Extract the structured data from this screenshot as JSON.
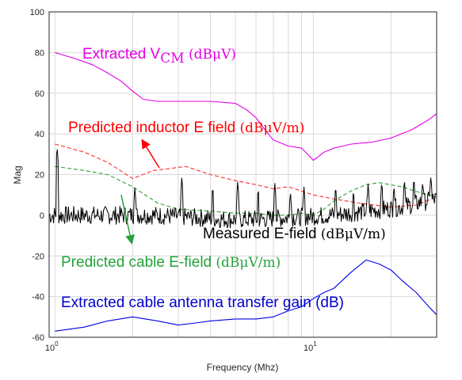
{
  "chart_data": {
    "type": "line",
    "title": "",
    "xlabel": "Frequency (Mhz)",
    "ylabel": "Mag",
    "xscale": "log",
    "xlim": [
      0.95,
      30
    ],
    "ylim": [
      -60,
      100
    ],
    "grid": true,
    "legend": "none",
    "yticks": [
      -60,
      -40,
      -20,
      0,
      20,
      40,
      60,
      80,
      100
    ],
    "xticks": [
      {
        "value": 1,
        "base": "10",
        "exp": "0"
      },
      {
        "value": 10,
        "base": "10",
        "exp": "1"
      }
    ],
    "series": [
      {
        "key": "vcm",
        "color": "#e600e6",
        "style": "solid",
        "x": [
          1.0,
          1.2,
          1.4,
          1.6,
          1.8,
          2.0,
          2.2,
          2.5,
          3.0,
          3.5,
          4.0,
          5.0,
          5.5,
          6.0,
          6.5,
          7.0,
          8.0,
          9.0,
          9.5,
          10.0,
          10.5,
          11.0,
          12.0,
          14.0,
          17.0,
          20.0,
          24.0,
          28.0,
          30.0
        ],
        "y": [
          80,
          77,
          74,
          70,
          66,
          61,
          57,
          56,
          56,
          56,
          56,
          55,
          52,
          48,
          42,
          37,
          34,
          33,
          30,
          27,
          29,
          31,
          33,
          35,
          36,
          38,
          42,
          47,
          50
        ]
      },
      {
        "key": "inductor",
        "color": "#ff2a2a",
        "style": "dashed",
        "x": [
          1.0,
          1.3,
          1.6,
          2.0,
          2.4,
          2.8,
          3.2,
          4.0,
          5.0,
          6.0,
          7.0,
          8.0,
          10.0,
          12.0,
          15.0,
          20.0,
          25.0,
          30.0
        ],
        "y": [
          35,
          31,
          26,
          18,
          22,
          23,
          24,
          20,
          17,
          15,
          13,
          14,
          10,
          8,
          6,
          4,
          5,
          9
        ]
      },
      {
        "key": "cable",
        "color": "#2ca02c",
        "style": "dashed",
        "x": [
          1.0,
          1.3,
          1.6,
          2.0,
          2.5,
          3.0,
          4.0,
          5.0,
          6.0,
          7.0,
          8.0,
          9.0,
          10.0,
          11.0,
          12.0,
          14.0,
          16.0,
          18.0,
          22.0,
          26.0,
          30.0
        ],
        "y": [
          24,
          22,
          20,
          14,
          6,
          3,
          2,
          1,
          1,
          0,
          0,
          1,
          0,
          3,
          7,
          12,
          15,
          16,
          14,
          11,
          9
        ]
      },
      {
        "key": "antenna",
        "color": "#0000e6",
        "style": "solid",
        "x": [
          1.0,
          1.3,
          1.6,
          2.0,
          2.5,
          3.0,
          3.5,
          4.0,
          5.0,
          6.0,
          7.0,
          8.0,
          9.0,
          10.0,
          11.0,
          12.0,
          14.0,
          16.0,
          18.0,
          20.0,
          22.0,
          25.0,
          28.0,
          30.0
        ],
        "y": [
          -57,
          -55,
          -52,
          -50,
          -52,
          -54,
          -53,
          -52,
          -51,
          -51,
          -50,
          -47,
          -45,
          -41,
          -38,
          -36,
          -28,
          -22,
          -24,
          -27,
          -32,
          -38,
          -45,
          -49
        ]
      },
      {
        "key": "measured",
        "color": "#000000",
        "style": "solid",
        "noise_baseline": [
          0,
          0,
          0,
          0,
          -1,
          -2,
          -2,
          -1,
          0,
          2,
          4,
          8
        ],
        "peaks": [
          [
            1.02,
            34
          ],
          [
            2.04,
            14
          ],
          [
            3.1,
            19
          ],
          [
            4.08,
            15
          ],
          [
            5.1,
            17
          ],
          [
            6.12,
            14
          ],
          [
            7.1,
            16
          ],
          [
            8.15,
            12
          ],
          [
            9.2,
            14
          ],
          [
            12.2,
            15
          ],
          [
            14.3,
            13
          ],
          [
            16.3,
            16
          ],
          [
            18.4,
            17
          ],
          [
            20.5,
            15
          ],
          [
            22.5,
            18
          ],
          [
            24.5,
            19
          ],
          [
            26.5,
            17
          ],
          [
            28.5,
            20
          ]
        ]
      }
    ],
    "annotations": {
      "vcm": {
        "main": "Extracted V",
        "sub": "CM",
        "unit": " (dBμV)",
        "color": "#e600e6"
      },
      "inductor": {
        "main": "Predicted inductor E field ",
        "unit": "(dBμV/m)",
        "color": "#ff0000"
      },
      "measured": {
        "main": "Measured E-field ",
        "unit": "(dBμV/m)",
        "color": "#000000"
      },
      "cable": {
        "main": "Predicted cable E-field ",
        "unit": "(dBμV/m)",
        "color": "#22a33a"
      },
      "antenna": {
        "main": "Extracted cable antenna transfer gain (dB)",
        "color": "#0000cc"
      }
    }
  }
}
